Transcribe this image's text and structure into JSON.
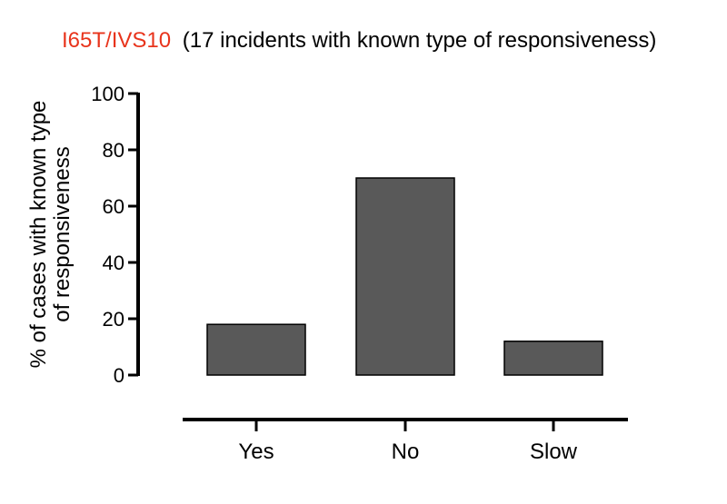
{
  "chart_data": {
    "type": "bar",
    "title_highlight": "I65T/IVS10",
    "title_rest": "(17 incidents with known type of responsiveness)",
    "ylabel_line1": "% of cases with  known type",
    "ylabel_line2": "of responsiveness",
    "xlabel": "",
    "categories": [
      "Yes",
      "No",
      "Slow"
    ],
    "values": [
      18,
      70,
      12
    ],
    "ylim": [
      0,
      100
    ],
    "yticks": [
      0,
      20,
      40,
      60,
      80,
      100
    ],
    "grid": false,
    "legend": "none",
    "colors": {
      "bar_fill": "#595959",
      "bar_stroke": "#000000",
      "title_highlight": "#e8341c",
      "axis": "#000000"
    }
  }
}
